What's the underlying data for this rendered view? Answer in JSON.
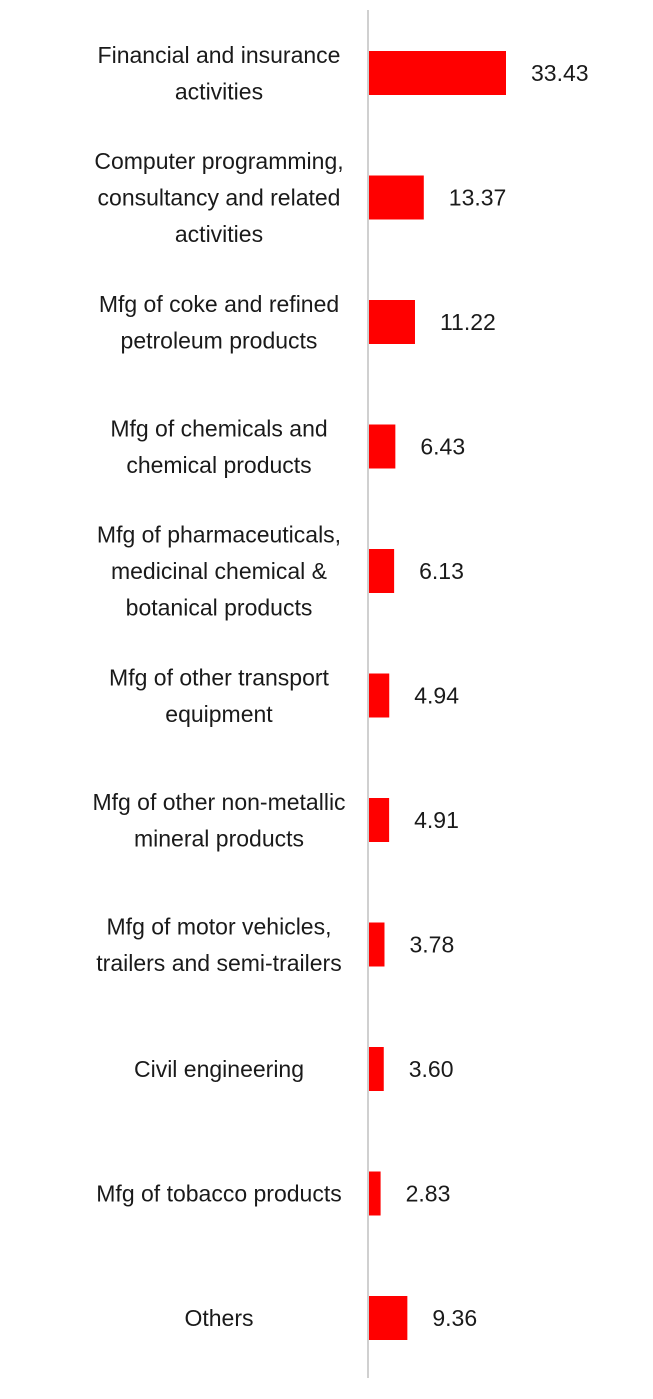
{
  "chart_data": {
    "type": "bar",
    "orientation": "horizontal",
    "categories": [
      [
        "Financial and insurance",
        "activities"
      ],
      [
        "Computer programming,",
        "consultancy and related",
        "activities"
      ],
      [
        "Mfg of coke and refined",
        "petroleum products"
      ],
      [
        "Mfg of chemicals and",
        "chemical products"
      ],
      [
        "Mfg of pharmaceuticals,",
        "medicinal chemical &",
        "botanical products"
      ],
      [
        "Mfg of other transport",
        "equipment"
      ],
      [
        "Mfg of other non-metallic",
        "mineral products"
      ],
      [
        "Mfg of motor vehicles,",
        "trailers and semi-trailers"
      ],
      [
        "Civil engineering"
      ],
      [
        "Mfg of tobacco products"
      ],
      [
        "Others"
      ]
    ],
    "values": [
      33.43,
      13.37,
      11.22,
      6.43,
      6.13,
      4.94,
      4.91,
      3.78,
      3.6,
      2.83,
      9.36
    ],
    "value_labels": [
      "33.43",
      "13.37",
      "11.22",
      "6.43",
      "6.13",
      "4.94",
      "4.91",
      "3.78",
      "3.60",
      "2.83",
      "9.36"
    ],
    "bar_color": "#ff0000",
    "axis_color": "#d0d0d0",
    "title": "",
    "xlabel": "",
    "ylabel": "",
    "xlim": [
      0,
      36
    ],
    "grid": false,
    "legend": "none"
  }
}
